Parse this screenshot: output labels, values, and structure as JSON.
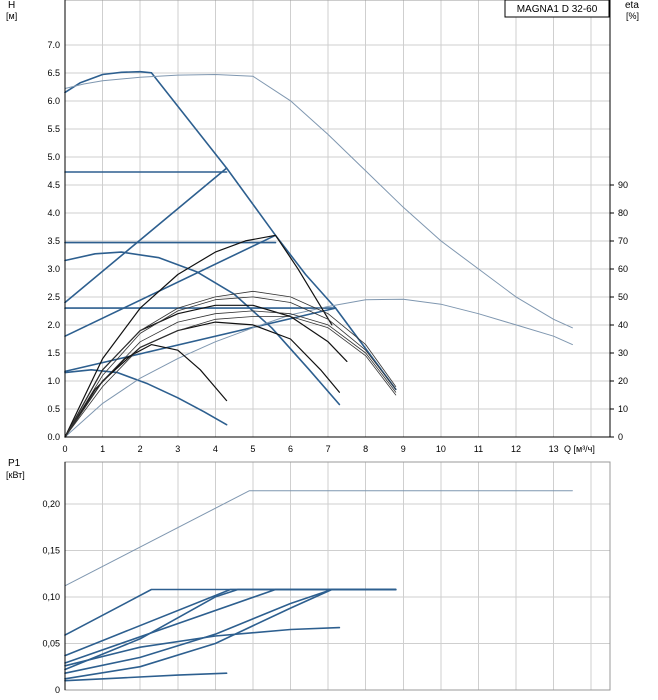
{
  "chart_data": [
    {
      "id": "qh",
      "type": "line",
      "title": "MAGNA1 D 32-60",
      "xlabel": "Q [м³/ч]",
      "ylabel_line1": "H",
      "ylabel_line2": "[м]",
      "y2label_line1": "eta",
      "y2label_line2": "[%]",
      "xlim": [
        0,
        14.5
      ],
      "ylim": [
        0,
        7.8
      ],
      "y2lim": [
        0,
        156
      ],
      "xticks": [
        "0",
        "1",
        "2",
        "3",
        "4",
        "5",
        "6",
        "7",
        "8",
        "9",
        "10",
        "11",
        "12",
        "13"
      ],
      "yticks": [
        "0.0",
        "0.5",
        "1.0",
        "1.5",
        "2.0",
        "2.5",
        "3.0",
        "3.5",
        "4.0",
        "4.5",
        "5.0",
        "5.5",
        "6.0",
        "6.5",
        "7.0"
      ],
      "y2ticks": [
        "0",
        "10",
        "20",
        "30",
        "40",
        "50",
        "60",
        "70",
        "80",
        "90"
      ],
      "series": [
        {
          "name": "max-curve",
          "style": "blue",
          "x": [
            0,
            0.4,
            1.0,
            1.5,
            2.0,
            2.3
          ],
          "y": [
            6.15,
            6.32,
            6.47,
            6.51,
            6.52,
            6.5
          ]
        },
        {
          "name": "max-steep",
          "style": "blue",
          "x": [
            2.3,
            4.3,
            5.6,
            6.4,
            7.2,
            8.8
          ],
          "y": [
            6.5,
            4.8,
            3.6,
            2.9,
            2.3,
            0.85
          ]
        },
        {
          "name": "cp-high",
          "style": "blue",
          "x": [
            0,
            4.3
          ],
          "y": [
            4.73,
            4.73
          ]
        },
        {
          "name": "cp-mid",
          "style": "blue",
          "x": [
            0,
            5.6
          ],
          "y": [
            3.47,
            3.47
          ]
        },
        {
          "name": "cp-low",
          "style": "blue",
          "x": [
            0,
            7.2
          ],
          "y": [
            2.3,
            2.3
          ]
        },
        {
          "name": "pp-high",
          "style": "blue",
          "x": [
            0,
            4.3
          ],
          "y": [
            2.4,
            4.8
          ]
        },
        {
          "name": "pp-mid",
          "style": "blue",
          "x": [
            0,
            5.6
          ],
          "y": [
            1.8,
            3.6
          ]
        },
        {
          "name": "pp-low",
          "style": "blue",
          "x": [
            0,
            7.2
          ],
          "y": [
            1.17,
            2.3
          ]
        },
        {
          "name": "fixed-speed-2",
          "style": "blue",
          "x": [
            0,
            0.8,
            1.5,
            2.5,
            3.5,
            4.5,
            5.5,
            6.5,
            7.3
          ],
          "y": [
            3.15,
            3.27,
            3.3,
            3.2,
            2.95,
            2.55,
            1.95,
            1.2,
            0.58
          ]
        },
        {
          "name": "fixed-speed-1",
          "style": "blue",
          "x": [
            0,
            0.7,
            1.4,
            2.2,
            3,
            3.7,
            4.3
          ],
          "y": [
            1.15,
            1.2,
            1.15,
            0.95,
            0.7,
            0.45,
            0.22
          ]
        },
        {
          "name": "efficiency-max",
          "style": "thin",
          "x": [
            0,
            0.5,
            1,
            2,
            3,
            4,
            5,
            6,
            7,
            8,
            9,
            10,
            11,
            12,
            13,
            13.5
          ],
          "y": [
            6.22,
            6.3,
            6.36,
            6.42,
            6.46,
            6.47,
            6.44,
            6.0,
            5.4,
            4.75,
            4.1,
            3.5,
            3.0,
            2.5,
            2.1,
            1.95
          ]
        },
        {
          "name": "efficiency-low",
          "style": "thin",
          "x": [
            0,
            1,
            2,
            3,
            4,
            5,
            6,
            7,
            8,
            9,
            10,
            11,
            12,
            13,
            13.5
          ],
          "y": [
            0,
            0.6,
            1.05,
            1.4,
            1.7,
            1.95,
            2.18,
            2.33,
            2.45,
            2.46,
            2.37,
            2.2,
            2.0,
            1.8,
            1.65
          ]
        }
      ],
      "eta_series": [
        {
          "name": "eta-1",
          "x": [
            0,
            0.8,
            1.6,
            2.3,
            3,
            3.6,
            4.3
          ],
          "y": [
            0,
            17,
            28,
            33,
            31,
            24,
            13
          ]
        },
        {
          "name": "eta-2",
          "x": [
            0,
            1,
            2,
            3,
            4,
            5,
            6,
            6.8,
            7.3
          ],
          "y": [
            0,
            20,
            32,
            38,
            41,
            40,
            35,
            24,
            16
          ]
        },
        {
          "name": "eta-3",
          "x": [
            0,
            1,
            2,
            3,
            4,
            5,
            6,
            7,
            7.5
          ],
          "y": [
            0,
            24,
            38,
            44,
            47,
            47,
            43,
            34,
            27
          ]
        },
        {
          "name": "eta-4",
          "x": [
            0,
            1,
            2,
            3,
            4,
            4.8,
            5.6,
            6.2,
            7.1
          ],
          "y": [
            0,
            28,
            46,
            58,
            66,
            70,
            72,
            60,
            40
          ]
        },
        {
          "name": "eta-5",
          "x": [
            0,
            1,
            2,
            3,
            4,
            5,
            6,
            7,
            8,
            8.8
          ],
          "y": [
            0,
            24,
            38,
            46,
            50,
            52,
            50,
            44,
            33,
            18
          ]
        },
        {
          "name": "eta-6",
          "x": [
            0,
            1,
            2,
            3,
            4,
            5,
            6,
            7,
            8,
            8.8
          ],
          "y": [
            0,
            22,
            37,
            45,
            49,
            50,
            48,
            42,
            31,
            17
          ]
        },
        {
          "name": "eta-7",
          "x": [
            0,
            1,
            2,
            3,
            4,
            5,
            6,
            7,
            8,
            8.8
          ],
          "y": [
            0,
            20,
            34,
            41,
            44,
            45,
            44,
            40,
            30,
            16
          ]
        },
        {
          "name": "eta-8",
          "x": [
            0,
            1,
            2,
            3,
            4,
            5,
            6,
            7,
            8,
            8.8
          ],
          "y": [
            0,
            18,
            32,
            38,
            42,
            43,
            43,
            39,
            29,
            15
          ]
        }
      ]
    },
    {
      "id": "qp",
      "type": "line",
      "xlabel": "",
      "ylabel_line1": "P1",
      "ylabel_line2": "[кВт]",
      "xlim": [
        0,
        14.5
      ],
      "ylim": [
        0,
        0.245
      ],
      "yticks": [
        "0",
        "0,05",
        "0,10",
        "0,15",
        "0,20"
      ],
      "yvalues": [
        0,
        0.05,
        0.1,
        0.15,
        0.2
      ],
      "series": [
        {
          "name": "p-max",
          "style": "thin",
          "x": [
            0,
            4.9,
            13.5
          ],
          "y": [
            0.112,
            0.214,
            0.214
          ]
        },
        {
          "name": "p-cp-high",
          "style": "blue",
          "x": [
            0,
            2.3,
            8.8
          ],
          "y": [
            0.059,
            0.108,
            0.108
          ]
        },
        {
          "name": "p-a",
          "style": "blue",
          "x": [
            0,
            4.4,
            8.8
          ],
          "y": [
            0.037,
            0.108,
            0.108
          ]
        },
        {
          "name": "p-b",
          "style": "blue",
          "x": [
            0,
            5.6,
            8.8
          ],
          "y": [
            0.029,
            0.108,
            0.108
          ]
        },
        {
          "name": "p-c",
          "style": "blue",
          "x": [
            0,
            2,
            4,
            4.6,
            8.8
          ],
          "y": [
            0.022,
            0.055,
            0.1,
            0.108,
            0.108
          ]
        },
        {
          "name": "p-d",
          "style": "blue",
          "x": [
            0,
            2,
            4,
            6,
            7.1,
            8.8
          ],
          "y": [
            0.018,
            0.035,
            0.06,
            0.093,
            0.108,
            0.108
          ]
        },
        {
          "name": "p-e",
          "style": "blue",
          "x": [
            0,
            2,
            4,
            6,
            7.1,
            8.8
          ],
          "y": [
            0.012,
            0.025,
            0.05,
            0.088,
            0.108,
            0.108
          ]
        },
        {
          "name": "p-f",
          "style": "blue",
          "x": [
            0,
            2,
            4,
            6,
            7.3
          ],
          "y": [
            0.026,
            0.046,
            0.058,
            0.065,
            0.067
          ]
        },
        {
          "name": "p-g",
          "style": "blue",
          "x": [
            0,
            1.5,
            3,
            4.3
          ],
          "y": [
            0.01,
            0.013,
            0.016,
            0.018
          ]
        }
      ]
    }
  ]
}
